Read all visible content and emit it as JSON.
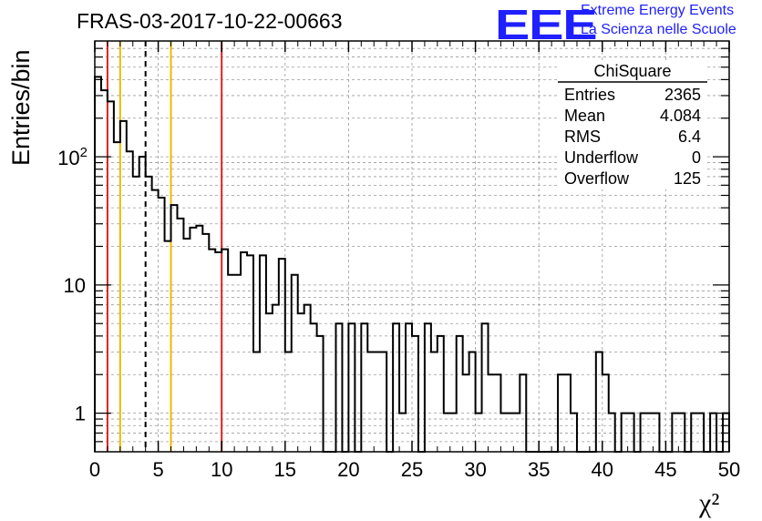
{
  "header": {
    "run_title": "FRAS-03-2017-10-22-00663",
    "logo_text": "EEE",
    "logo_line1": "Extreme Energy Events",
    "logo_line2": "La Scienza nelle Scuole"
  },
  "stats": {
    "title": "ChiSquare",
    "rows": [
      {
        "label": "Entries",
        "value": "2365"
      },
      {
        "label": "Mean",
        "value": "4.084"
      },
      {
        "label": "RMS",
        "value": "6.4"
      },
      {
        "label": "Underflow",
        "value": "0"
      },
      {
        "label": "Overflow",
        "value": "125"
      }
    ]
  },
  "colors": {
    "red_line": "#e0201c",
    "yellow_line": "#f0b800",
    "histogram": "#000000",
    "grid": "#9a9a9a",
    "logo_blue": "#1f1fff"
  },
  "chart_data": {
    "type": "bar",
    "title": "FRAS-03-2017-10-22-00663",
    "xlabel": "χ²",
    "ylabel": "Entries/bin",
    "xlim": [
      0,
      50
    ],
    "ylim": [
      0.5,
      800
    ],
    "y_scale": "log",
    "grid": true,
    "bin_width": 0.5,
    "x_ticks": [
      "0",
      "5",
      "10",
      "15",
      "20",
      "25",
      "30",
      "35",
      "40",
      "45",
      "50"
    ],
    "y_ticks": [
      "1",
      "10",
      "10^2"
    ],
    "values": [
      420,
      330,
      270,
      130,
      190,
      110,
      70,
      100,
      70,
      55,
      48,
      22,
      42,
      33,
      23,
      28,
      29,
      25,
      19,
      18,
      19,
      12,
      12,
      18,
      17,
      3,
      17,
      6,
      7,
      16,
      3,
      12,
      6,
      7,
      5,
      4,
      0,
      0,
      5,
      0,
      5,
      0,
      5,
      3,
      3,
      3,
      0,
      5,
      1,
      5,
      4,
      0,
      5,
      3,
      4,
      1,
      1,
      4,
      2,
      3,
      1,
      5,
      2,
      2,
      1,
      1,
      1,
      2,
      0,
      0,
      0,
      0,
      0,
      2,
      2,
      1,
      0,
      0,
      0,
      3,
      2,
      1,
      0,
      1,
      1,
      0,
      1,
      1,
      1,
      0,
      0,
      1,
      1,
      0,
      1,
      1,
      0,
      1,
      0,
      1
    ],
    "vertical_lines": [
      {
        "x": 1,
        "color": "red",
        "style": "solid"
      },
      {
        "x": 2,
        "color": "yellow",
        "style": "solid"
      },
      {
        "x": 4,
        "color": "black",
        "style": "dashed"
      },
      {
        "x": 6,
        "color": "yellow",
        "style": "solid"
      },
      {
        "x": 10,
        "color": "red",
        "style": "solid"
      }
    ]
  }
}
